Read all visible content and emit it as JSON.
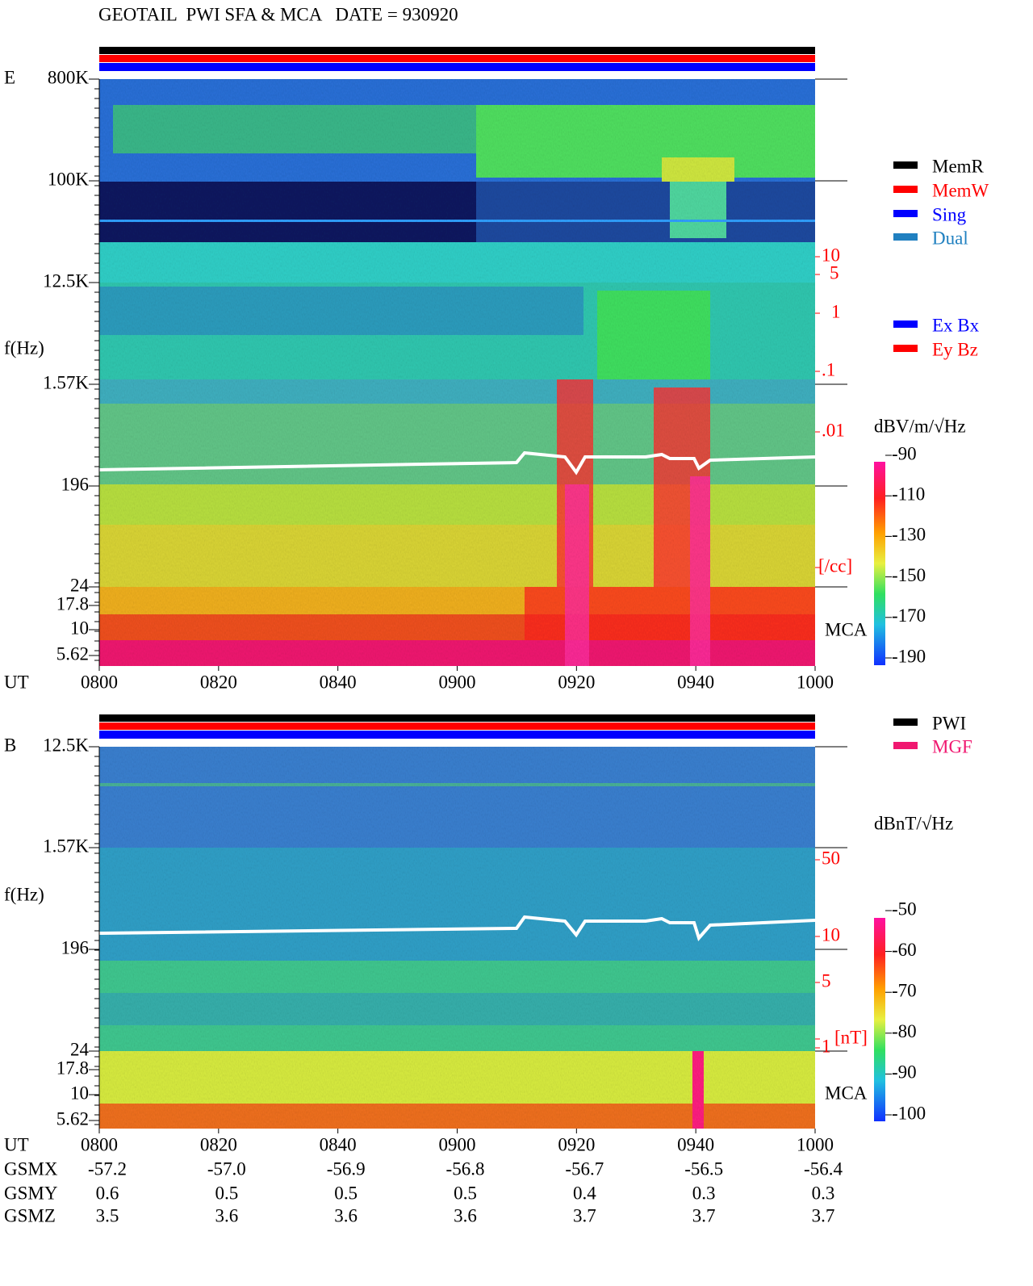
{
  "header": {
    "title": "GEOTAIL  PWI SFA & MCA   DATE = 930920"
  },
  "panels": [
    {
      "label": "E",
      "axis_label": "f(Hz)",
      "freq_labels": [
        "800K",
        "100K",
        "12.5K",
        "1.57K",
        "196",
        "24",
        "17.8",
        "10",
        "5.62"
      ],
      "time_label": "UT",
      "time_ticks": [
        "0800",
        "0820",
        "0840",
        "0900",
        "0920",
        "0940",
        "1000"
      ],
      "scale_labels": [
        "10",
        "5",
        "1",
        ".1",
        ".01",
        "[/cc]"
      ],
      "mca_label": "MCA",
      "legend": [
        {
          "name": "MemR",
          "color": "#000000"
        },
        {
          "name": "MemW",
          "color": "#ff0000"
        },
        {
          "name": "Sing",
          "color": "#0000ff"
        },
        {
          "name": "Dual",
          "color": "#2080c0"
        }
      ],
      "legend2": [
        {
          "name": "Ex Bx",
          "color": "#0000ff"
        },
        {
          "name": "Ey Bz",
          "color": "#ff0000"
        }
      ],
      "colorbar": {
        "unit": "dBV/m/√Hz",
        "ticks": [
          "-90",
          "-110",
          "-130",
          "-150",
          "-170",
          "-190"
        ]
      }
    },
    {
      "label": "B",
      "axis_label": "f(Hz)",
      "freq_labels": [
        "12.5K",
        "1.57K",
        "196",
        "24",
        "17.8",
        "10",
        "5.62"
      ],
      "time_label": "UT",
      "time_ticks": [
        "0800",
        "0820",
        "0840",
        "0900",
        "0920",
        "0940",
        "1000"
      ],
      "scale_labels": [
        "50",
        "10",
        "5",
        "1",
        "[nT]"
      ],
      "mca_label": "MCA",
      "legend": [
        {
          "name": "PWI",
          "color": "#000000"
        },
        {
          "name": "MGF",
          "color": "#f01870"
        }
      ],
      "colorbar": {
        "unit": "dBnT/√Hz",
        "ticks": [
          "-50",
          "-60",
          "-70",
          "-80",
          "-90",
          "-100"
        ]
      }
    }
  ],
  "orbit": {
    "rows": [
      {
        "label": "GSMX",
        "values": [
          "-57.2",
          "-57.0",
          "-56.9",
          "-56.8",
          "-56.7",
          "-56.5",
          "-56.4"
        ]
      },
      {
        "label": "GSMY",
        "values": [
          "0.6",
          "0.5",
          "0.5",
          "0.5",
          "0.4",
          "0.3",
          "0.3"
        ]
      },
      {
        "label": "GSMZ",
        "values": [
          "3.5",
          "3.6",
          "3.6",
          "3.6",
          "3.7",
          "3.7",
          "3.7"
        ]
      }
    ]
  }
}
